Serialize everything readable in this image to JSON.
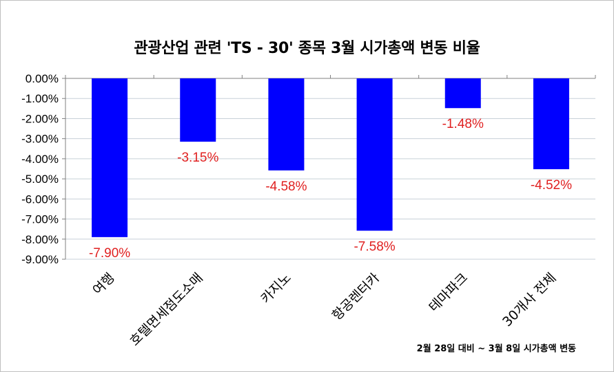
{
  "title": "관광산업 관련 'TS - 30' 종목 3월 시가총액 변동 비율",
  "footnote": "2월 28일 대비 ~ 3월 8일 시가총액 변동",
  "chart_data": {
    "type": "bar",
    "title": "관광산업 관련 'TS - 30' 종목 3월 시가총액 변동 비율",
    "categories": [
      "여행",
      "호텔면세점도소매",
      "카지노",
      "항공렌터카",
      "테마파크",
      "30개사 전체"
    ],
    "values": [
      -7.9,
      -3.15,
      -4.58,
      -7.58,
      -1.48,
      -4.52
    ],
    "value_labels": [
      "-7.90%",
      "-3.15%",
      "-4.58%",
      "-7.58%",
      "-1.48%",
      "-4.52%"
    ],
    "ylim": [
      -9.0,
      0.0
    ],
    "yticks": [
      "0.00%",
      "-1.00%",
      "-2.00%",
      "-3.00%",
      "-4.00%",
      "-5.00%",
      "-6.00%",
      "-7.00%",
      "-8.00%",
      "-9.00%"
    ],
    "ytick_values": [
      0,
      -1,
      -2,
      -3,
      -4,
      -5,
      -6,
      -7,
      -8,
      -9
    ],
    "grid": true,
    "bar_color": "#0000ff",
    "label_color": "#e02020",
    "xlabel": "",
    "ylabel": ""
  }
}
